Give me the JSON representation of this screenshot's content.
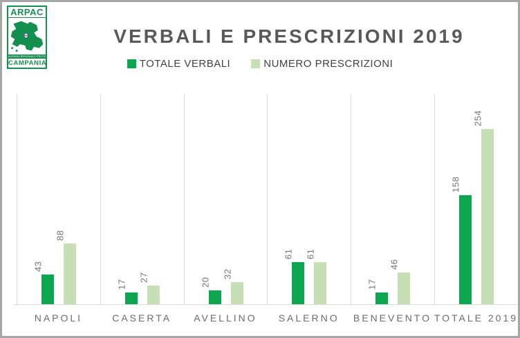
{
  "window": {
    "border_color": "#a6a6a6",
    "background": "#ffffff"
  },
  "logo": {
    "top_text": "ARPAC",
    "strip_text": "AGENZIA REGIONALE PROTEZIONE AMBIENTALE",
    "bottom_text": "CAMPANIA",
    "green": "#14904e"
  },
  "header": {
    "title": "VERBALI E PRESCRIZIONI  2019",
    "title_color": "#595959"
  },
  "legend": {
    "items": [
      {
        "label": "TOTALE VERBALI",
        "color": "#0ca64f"
      },
      {
        "label": "NUMERO PRESCRIZIONI",
        "color": "#c6dfb4"
      }
    ]
  },
  "chart_data": {
    "type": "bar",
    "title": "VERBALI E PRESCRIZIONI  2019",
    "categories": [
      "NAPOLI",
      "CASERTA",
      "AVELLINO",
      "SALERNO",
      "BENEVENTO",
      "TOTALE 2019"
    ],
    "series": [
      {
        "name": "TOTALE VERBALI",
        "color": "#0ca64f",
        "values": [
          43,
          17,
          20,
          61,
          17,
          158
        ]
      },
      {
        "name": "NUMERO PRESCRIZIONI",
        "color": "#c6dfb4",
        "values": [
          88,
          27,
          32,
          61,
          46,
          254
        ]
      }
    ],
    "ylim": [
      0,
      305
    ],
    "y_axis_visible": false,
    "grid": "vertical-category-separators",
    "gridline_color": "#d9d9d9",
    "data_labels": "rotated-90-above-bars",
    "data_label_color": "#747474",
    "legend_position": "top"
  }
}
